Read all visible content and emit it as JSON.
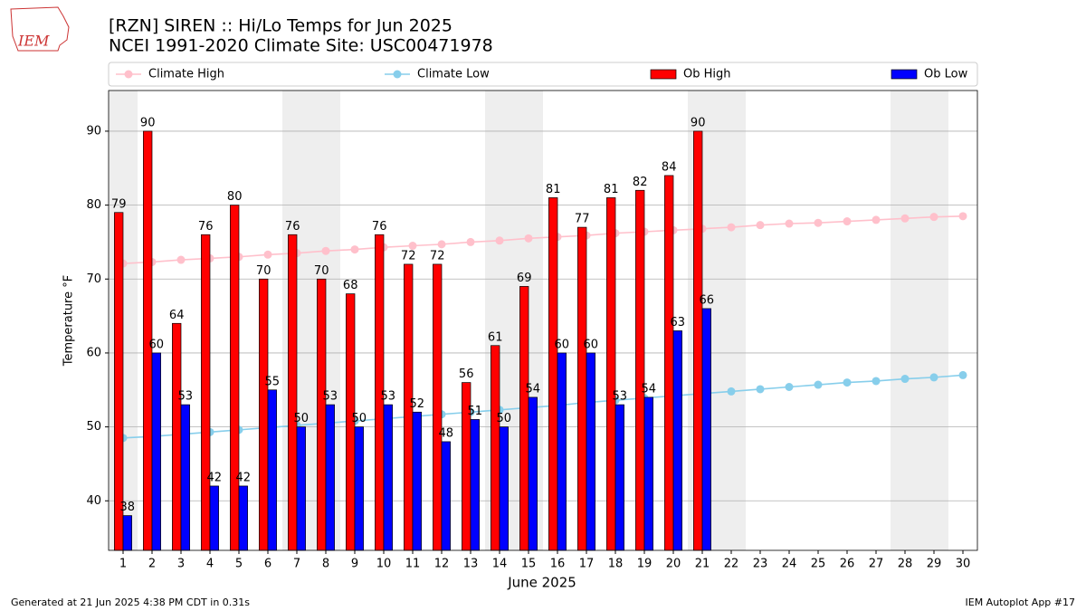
{
  "chart_data": {
    "type": "bar",
    "title": "[RZN] SIREN :: Hi/Lo Temps for Jun 2025",
    "subtitle": "NCEI 1991-2020 Climate Site: USC00471978",
    "logo_text": "IEM",
    "xlabel": "June 2025",
    "ylabel": "Temperature °F",
    "footer_left": "Generated at 21 Jun 2025 4:38 PM CDT in 0.31s",
    "footer_right": "IEM Autoplot App #17",
    "x": [
      1,
      2,
      3,
      4,
      5,
      6,
      7,
      8,
      9,
      10,
      11,
      12,
      13,
      14,
      15,
      16,
      17,
      18,
      19,
      20,
      21,
      22,
      23,
      24,
      25,
      26,
      27,
      28,
      29,
      30
    ],
    "xlim": [
      0.5,
      30.5
    ],
    "xticks": [
      1,
      2,
      3,
      4,
      5,
      6,
      7,
      8,
      9,
      10,
      11,
      12,
      13,
      14,
      15,
      16,
      17,
      18,
      19,
      20,
      21,
      22,
      23,
      24,
      25,
      26,
      27,
      28,
      29,
      30
    ],
    "ylim": [
      33.3,
      95.5
    ],
    "yticks": [
      40,
      50,
      60,
      70,
      80,
      90
    ],
    "grid": true,
    "legend": "top",
    "shaded_spans": [
      [
        0.5,
        1.5
      ],
      [
        6.5,
        8.5
      ],
      [
        13.5,
        15.5
      ],
      [
        20.5,
        22.5
      ],
      [
        27.5,
        29.5
      ]
    ],
    "shade_color": "#eeeeee",
    "series": [
      {
        "name": "Climate High",
        "type": "line",
        "color": "#ffc0cb",
        "values": [
          72.1,
          72.3,
          72.6,
          72.8,
          73.0,
          73.3,
          73.5,
          73.8,
          74.0,
          74.3,
          74.5,
          74.7,
          75.0,
          75.2,
          75.5,
          75.7,
          75.9,
          76.2,
          76.4,
          76.6,
          76.8,
          77.0,
          77.3,
          77.5,
          77.6,
          77.8,
          78.0,
          78.2,
          78.4,
          78.5
        ]
      },
      {
        "name": "Climate Low",
        "type": "line",
        "color": "#87ceeb",
        "values": [
          48.5,
          48.7,
          49.0,
          49.3,
          49.6,
          49.9,
          50.2,
          50.5,
          50.8,
          51.1,
          51.4,
          51.7,
          52.0,
          52.3,
          52.6,
          52.9,
          53.3,
          53.6,
          53.9,
          54.2,
          54.5,
          54.8,
          55.1,
          55.4,
          55.7,
          56.0,
          56.2,
          56.5,
          56.7,
          57.0
        ]
      },
      {
        "name": "Ob High",
        "type": "bar",
        "color": "#ff0000",
        "values": [
          79,
          90,
          64,
          76,
          80,
          70,
          76,
          70,
          68,
          76,
          72,
          72,
          56,
          61,
          69,
          81,
          77,
          81,
          82,
          84,
          90,
          null,
          null,
          null,
          null,
          null,
          null,
          null,
          null,
          null
        ]
      },
      {
        "name": "Ob Low",
        "type": "bar",
        "color": "#0000ff",
        "values": [
          38,
          60,
          53,
          42,
          42,
          55,
          50,
          53,
          50,
          53,
          52,
          48,
          51,
          50,
          54,
          60,
          60,
          53,
          54,
          63,
          66,
          null,
          null,
          null,
          null,
          null,
          null,
          null,
          null,
          null
        ]
      }
    ]
  }
}
